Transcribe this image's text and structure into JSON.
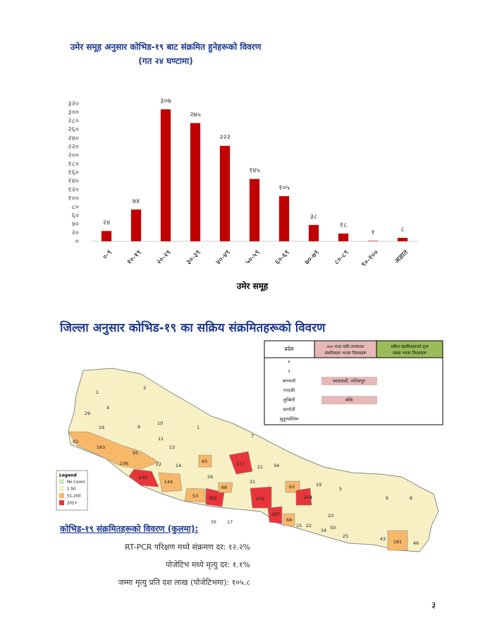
{
  "chart_data": {
    "type": "bar",
    "title": "उमेर समूह अनुसार कोभिड-१९ बाट संक्रमित हुनेहरूको विवरण",
    "subtitle": "(गत २४ घण्टामा)",
    "x_label": "उमेर समूह",
    "categories": [
      "०-९",
      "१०-१९",
      "२०-२९",
      "३०-३९",
      "४०-४९",
      "५०-५९",
      "६०-६९",
      "७०-७९",
      "८०-८९",
      "९०-१००",
      "अज्ञात"
    ],
    "values": [
      24,
      74,
      307,
      275,
      222,
      145,
      105,
      38,
      18,
      1,
      8
    ],
    "value_labels": [
      "२४",
      "७४",
      "३०७",
      "२७५",
      "२२२",
      "१४५",
      "१०५",
      "३८",
      "१८",
      "१",
      "८"
    ],
    "color": "#c00000",
    "ylim": [
      0,
      320
    ],
    "yticks": [
      {
        "value": 0,
        "label": "०"
      },
      {
        "value": 20,
        "label": "२०"
      },
      {
        "value": 40,
        "label": "४०"
      },
      {
        "value": 60,
        "label": "६०"
      },
      {
        "value": 80,
        "label": "८०"
      },
      {
        "value": 100,
        "label": "१००"
      },
      {
        "value": 120,
        "label": "१२०"
      },
      {
        "value": 140,
        "label": "१४०"
      },
      {
        "value": 160,
        "label": "१६०"
      },
      {
        "value": 180,
        "label": "१८०"
      },
      {
        "value": 200,
        "label": "२००"
      },
      {
        "value": 220,
        "label": "२२०"
      },
      {
        "value": 240,
        "label": "२४०"
      },
      {
        "value": 260,
        "label": "२६०"
      },
      {
        "value": 280,
        "label": "२८०"
      },
      {
        "value": 300,
        "label": "३००"
      },
      {
        "value": 320,
        "label": "३२०"
      }
    ]
  },
  "map_section": {
    "title": "जिल्ला अनुसार कोभिड-१९ का सक्रिय संक्रमितहरूको विवरण",
    "legend": {
      "title": "Legend",
      "items": [
        "No Cases",
        "1-50",
        "51-200",
        "201+"
      ]
    },
    "district_labels": [
      "93",
      "183",
      "95",
      "106",
      "630",
      "144",
      "53",
      "392",
      "68",
      "60",
      "377",
      "21",
      "34",
      "209",
      "287",
      "68",
      "63",
      "204",
      "19",
      "181",
      "46",
      "43",
      "25",
      "50",
      "10",
      "8",
      "9",
      "5",
      "1",
      "3",
      "4",
      "7",
      "29",
      "19",
      "9",
      "10",
      "11",
      "13",
      "22",
      "14",
      "26",
      "35",
      "17",
      "31",
      "22",
      "34",
      "15",
      "1"
    ]
  },
  "table": {
    "header": [
      "प्रदेश",
      "४०० भन्दा माथि उपचाररत संक्रमितहरू भएका जिल्लाहरू",
      "सक्रिय संक्रमितहरूको शून्य संख्या भएका जिल्लाहरू"
    ],
    "rows": [
      [
        "१",
        "",
        ""
      ],
      [
        "२",
        "",
        ""
      ],
      [
        "बागमती",
        "काठमाडौं, ललितपुर",
        ""
      ],
      [
        "गण्डकी",
        "",
        ""
      ],
      [
        "लुम्बिनी",
        "बाँके",
        ""
      ],
      [
        "कर्णाली",
        "",
        ""
      ],
      [
        "सुदूरपश्चिम",
        "",
        ""
      ]
    ]
  },
  "summary": {
    "heading": "कोभिड-१९ संक्रमितहरूको  विवरण (कुलमा):",
    "lines": [
      "RT-PCR परिक्षण मध्ये संक्रमण दर: १२.२%",
      "पोजेटिभ मध्ये मृत्यु दर: १.१%",
      "जम्मा मृत्यु प्रति दश लाख (पोजेटिभमा): १०५.८"
    ]
  },
  "page_number": "३"
}
